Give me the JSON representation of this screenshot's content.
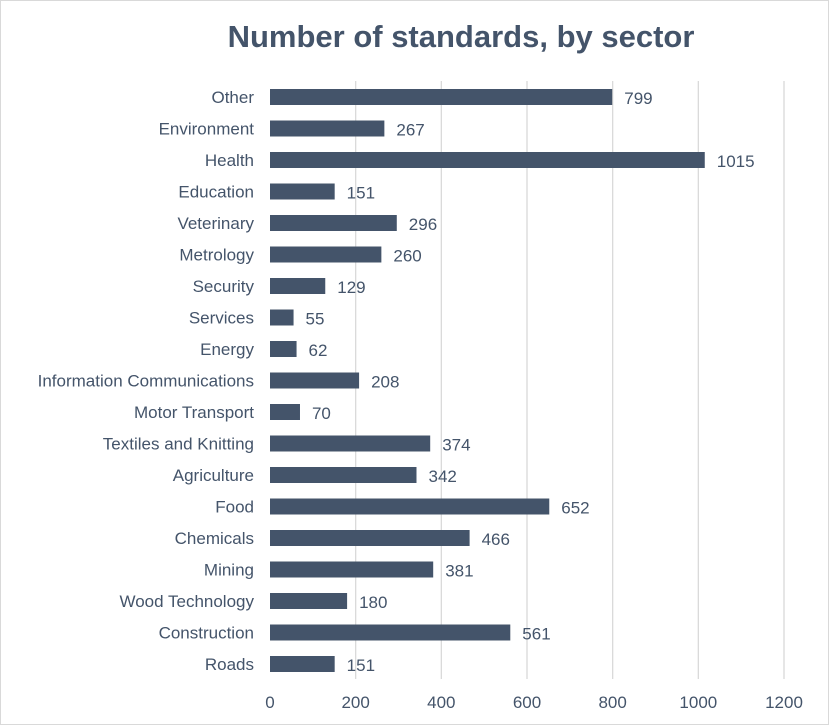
{
  "chart_data": {
    "type": "bar",
    "orientation": "horizontal",
    "title": "Number of standards, by sector",
    "xlabel": "",
    "ylabel": "",
    "categories": [
      "Other",
      "Environment",
      "Health",
      "Education",
      "Veterinary",
      "Metrology",
      "Security",
      "Services",
      "Energy",
      "Information Communications",
      "Motor Transport",
      "Textiles and Knitting",
      "Agriculture",
      "Food",
      "Chemicals",
      "Mining",
      "Wood Technology",
      "Construction",
      "Roads"
    ],
    "values": [
      799,
      267,
      1015,
      151,
      296,
      260,
      129,
      55,
      62,
      208,
      70,
      374,
      342,
      652,
      466,
      381,
      180,
      561,
      151
    ],
    "xlim": [
      0,
      1200
    ],
    "xticks": [
      0,
      200,
      400,
      600,
      800,
      1000,
      1200
    ],
    "grid": "vertical",
    "legend": "none",
    "data_labels": true
  },
  "colors": {
    "bar": "#44546a",
    "text": "#44546a",
    "grid": "#d9d9d9",
    "title": "#44546a"
  }
}
